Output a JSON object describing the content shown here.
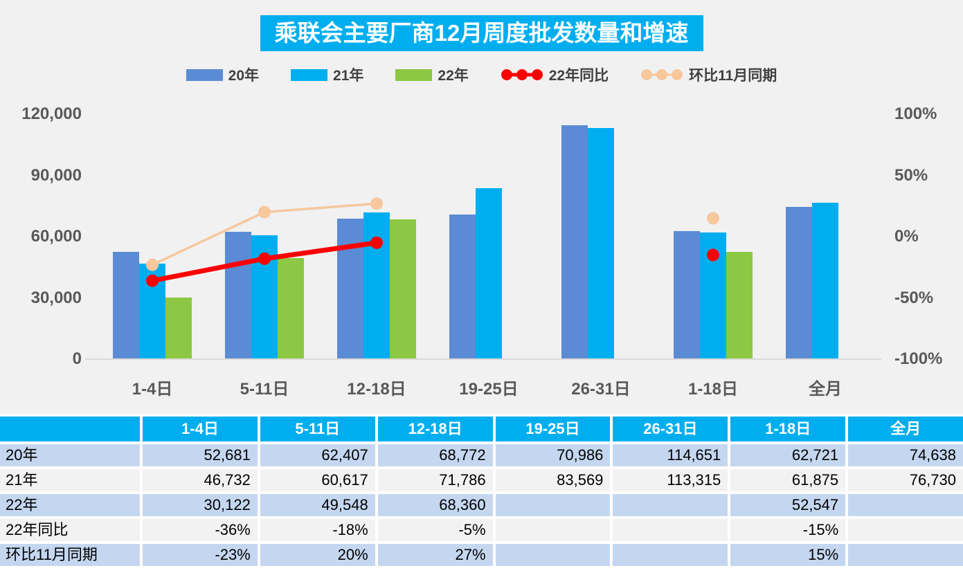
{
  "title": "乘联会主要厂商12月周度批发数量和增速",
  "legend": [
    {
      "label": "20年",
      "type": "bar",
      "color": "#5B8BD4"
    },
    {
      "label": "21年",
      "type": "bar",
      "color": "#00AEEF"
    },
    {
      "label": "22年",
      "type": "bar",
      "color": "#8CC843"
    },
    {
      "label": "22年同比",
      "type": "line",
      "color": "#FB0000"
    },
    {
      "label": "环比11月同期",
      "type": "line",
      "color": "#F7C79D"
    }
  ],
  "chart_data": {
    "type": "bar+line-combo",
    "title": "乘联会主要厂商12月周度批发数量和增速",
    "categories": [
      "1-4日",
      "5-11日",
      "12-18日",
      "19-25日",
      "26-31日",
      "1-18日",
      "全月"
    ],
    "series": [
      {
        "name": "20年",
        "type": "bar",
        "axis": "left",
        "color": "#5B8BD4",
        "values": [
          52681,
          62407,
          68772,
          70986,
          114651,
          62721,
          74638
        ]
      },
      {
        "name": "21年",
        "type": "bar",
        "axis": "left",
        "color": "#00AEEF",
        "values": [
          46732,
          60617,
          71786,
          83569,
          113315,
          61875,
          76730
        ]
      },
      {
        "name": "22年",
        "type": "bar",
        "axis": "left",
        "color": "#8CC843",
        "values": [
          30122,
          49548,
          68360,
          null,
          null,
          52547,
          null
        ]
      },
      {
        "name": "22年同比",
        "type": "line",
        "axis": "right",
        "unit": "%",
        "color": "#FB0000",
        "line_width": 7,
        "marker_r": 9,
        "values": [
          -36,
          -18,
          -5,
          null,
          null,
          -15,
          null
        ]
      },
      {
        "name": "环比11月同期",
        "type": "line",
        "axis": "right",
        "unit": "%",
        "color": "#F7C79D",
        "line_width": 3.5,
        "marker_r": 9,
        "values": [
          -23,
          20,
          27,
          null,
          null,
          15,
          null
        ]
      }
    ],
    "left_axis": {
      "min": 0,
      "max": 120000,
      "ticks_bottom_up": [
        "0",
        "30,000",
        "60,000",
        "90,000",
        "120,000"
      ]
    },
    "right_axis": {
      "min": -100,
      "max": 100,
      "ticks_bottom_up": [
        "-100%",
        "-50%",
        "0%",
        "50%",
        "100%"
      ]
    },
    "grid": false,
    "legend_position": "top"
  },
  "table": {
    "header": [
      "",
      "1-4日",
      "5-11日",
      "12-18日",
      "19-25日",
      "26-31日",
      "1-18日",
      "全月"
    ],
    "rows": [
      {
        "label": "20年",
        "values": [
          "52,681",
          "62,407",
          "68,772",
          "70,986",
          "114,651",
          "62,721",
          "74,638"
        ]
      },
      {
        "label": "21年",
        "values": [
          "46,732",
          "60,617",
          "71,786",
          "83,569",
          "113,315",
          "61,875",
          "76,730"
        ]
      },
      {
        "label": "22年",
        "values": [
          "30,122",
          "49,548",
          "68,360",
          "",
          "",
          "52,547",
          ""
        ]
      },
      {
        "label": "22年同比",
        "values": [
          "-36%",
          "-18%",
          "-5%",
          "",
          "",
          "-15%",
          ""
        ]
      },
      {
        "label": "环比11月同期",
        "values": [
          "-23%",
          "20%",
          "27%",
          "",
          "",
          "15%",
          ""
        ]
      }
    ]
  },
  "colors": {
    "background": "#F1F1F2",
    "title_bg": "#00AEEF",
    "table_header_bg": "#00AEEF",
    "table_row_blue": "#C5D7F0",
    "table_row_gray": "#F2F2F2",
    "axis_text": "#595959",
    "baseline": "#D9D9D9"
  }
}
